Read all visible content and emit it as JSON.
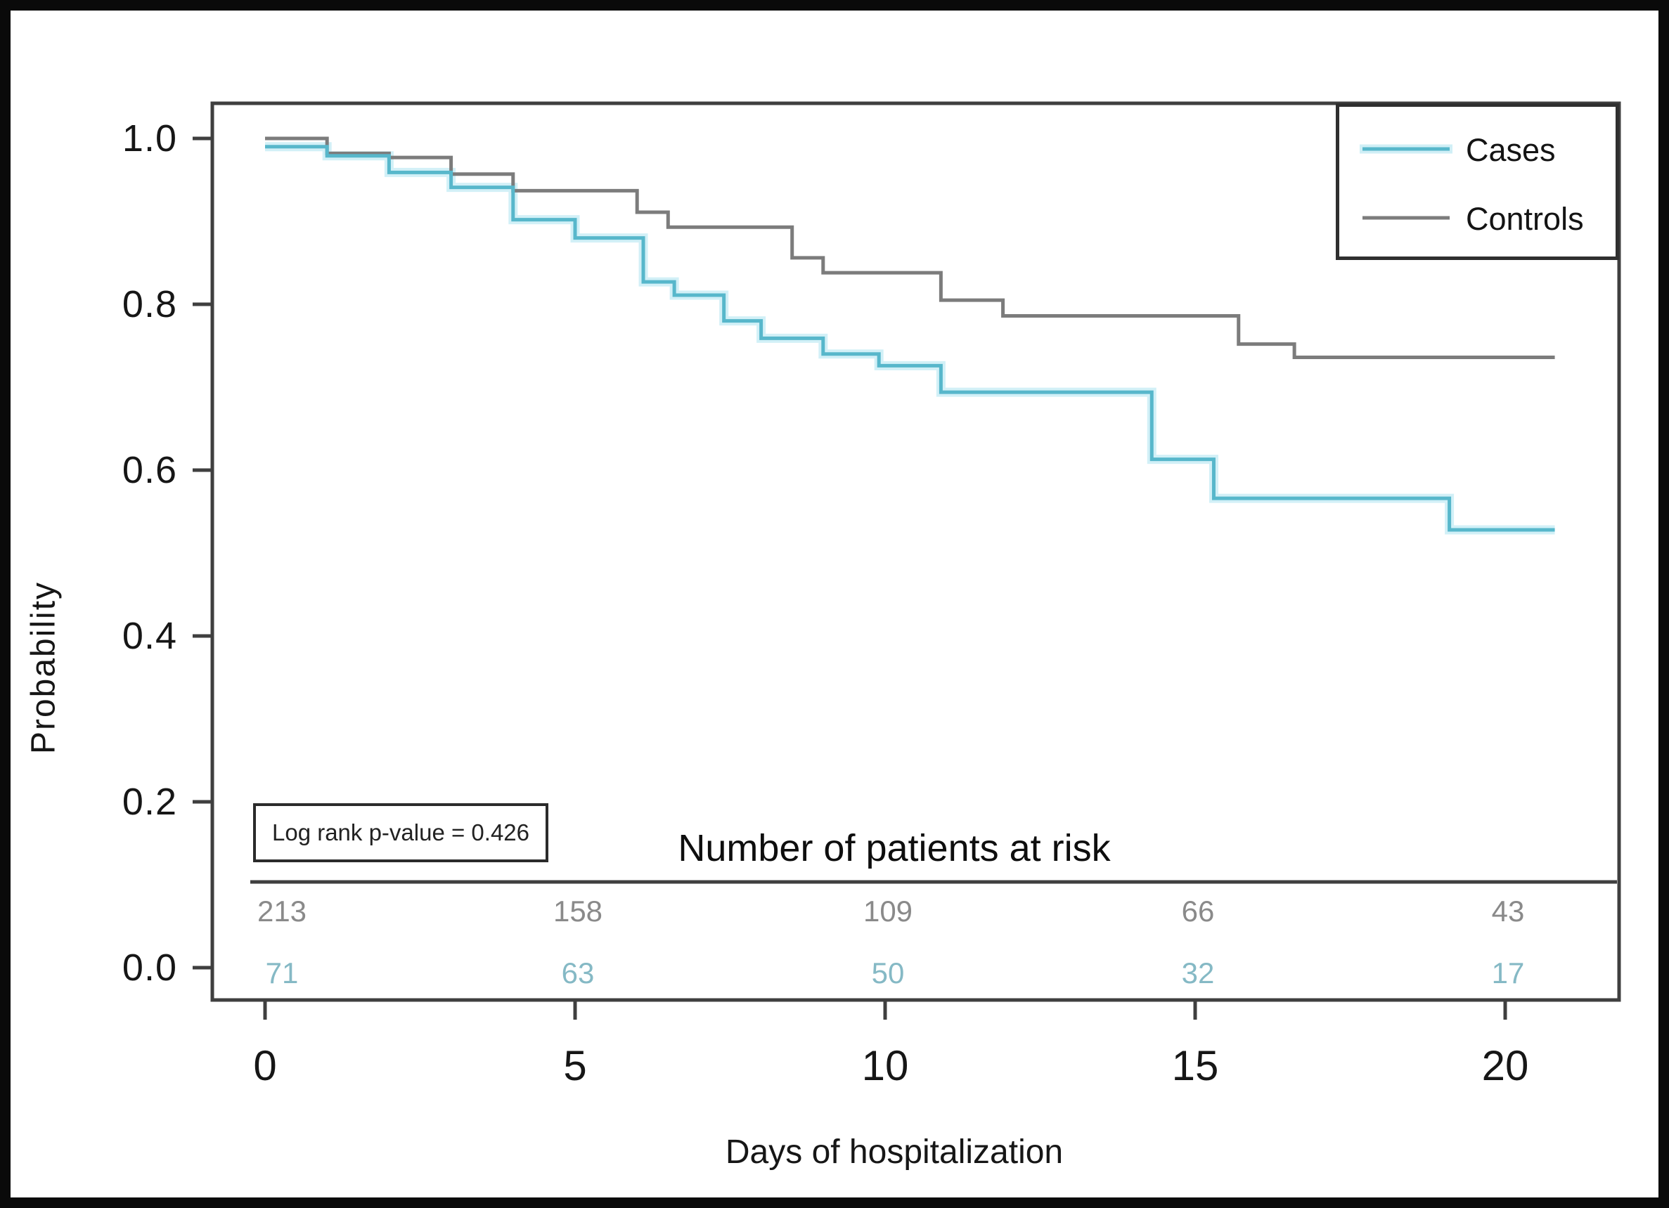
{
  "figure": {
    "y_axis": {
      "label": "Probability",
      "tick_labels": [
        "1.0",
        "0.8",
        "0.6",
        "0.4",
        "0.2",
        "0.0"
      ],
      "tick_values": [
        1.0,
        0.8,
        0.6,
        0.4,
        0.2,
        0.0
      ]
    },
    "x_axis": {
      "label": "Days of hospitalization",
      "tick_labels": [
        "0",
        "5",
        "10",
        "15",
        "20"
      ],
      "tick_values": [
        0,
        5,
        10,
        15,
        20
      ]
    },
    "legend": {
      "items": [
        {
          "label": "Cases",
          "color": "#57b7cb",
          "halo": "#cdeef6"
        },
        {
          "label": "Controls",
          "color": "#7c7c7c",
          "halo": "none"
        }
      ]
    },
    "annotation": {
      "log_rank_label": "Log rank p-value = 0.426"
    },
    "risk_table": {
      "title": "Number of patients at risk",
      "rows": [
        {
          "name": "Controls",
          "text_color": "#8a8a8a",
          "values": [
            "213",
            "158",
            "109",
            "66",
            "43"
          ]
        },
        {
          "name": "Cases",
          "text_color": "#85b9c5",
          "values": [
            "71",
            "63",
            "50",
            "32",
            "17"
          ]
        }
      ]
    }
  },
  "chart_data": {
    "type": "line",
    "subtype": "kaplan_meier_step",
    "title": "",
    "xlabel": "Days of hospitalization",
    "ylabel": "Probability",
    "xlim": [
      0,
      21.8
    ],
    "ylim": [
      0,
      1.0
    ],
    "grid": false,
    "legend_position": "top-right",
    "log_rank_p_value": 0.426,
    "series": [
      {
        "name": "Cases",
        "color": "#57b7cb",
        "end_x": 20.8,
        "steps": [
          [
            0,
            0.99
          ],
          [
            1,
            0.979
          ],
          [
            2,
            0.959
          ],
          [
            3,
            0.941
          ],
          [
            4,
            0.902
          ],
          [
            5,
            0.88
          ],
          [
            6.1,
            0.827
          ],
          [
            6.6,
            0.811
          ],
          [
            7.4,
            0.78
          ],
          [
            8,
            0.759
          ],
          [
            9,
            0.74
          ],
          [
            9.9,
            0.726
          ],
          [
            10.9,
            0.694
          ],
          [
            14.3,
            0.613
          ],
          [
            15.3,
            0.566
          ],
          [
            19.1,
            0.528
          ]
        ]
      },
      {
        "name": "Controls",
        "color": "#7c7c7c",
        "end_x": 20.8,
        "steps": [
          [
            0,
            1.0
          ],
          [
            1,
            0.982
          ],
          [
            2,
            0.977
          ],
          [
            3,
            0.957
          ],
          [
            4,
            0.937
          ],
          [
            6,
            0.911
          ],
          [
            6.5,
            0.893
          ],
          [
            8.5,
            0.856
          ],
          [
            9,
            0.838
          ],
          [
            10.9,
            0.805
          ],
          [
            11.9,
            0.786
          ],
          [
            15.7,
            0.752
          ],
          [
            16.6,
            0.736
          ]
        ]
      }
    ],
    "at_risk": {
      "days": [
        0,
        5,
        10,
        15,
        20
      ],
      "Controls": [
        213,
        158,
        109,
        66,
        43
      ],
      "Cases": [
        71,
        63,
        50,
        32,
        17
      ]
    }
  }
}
